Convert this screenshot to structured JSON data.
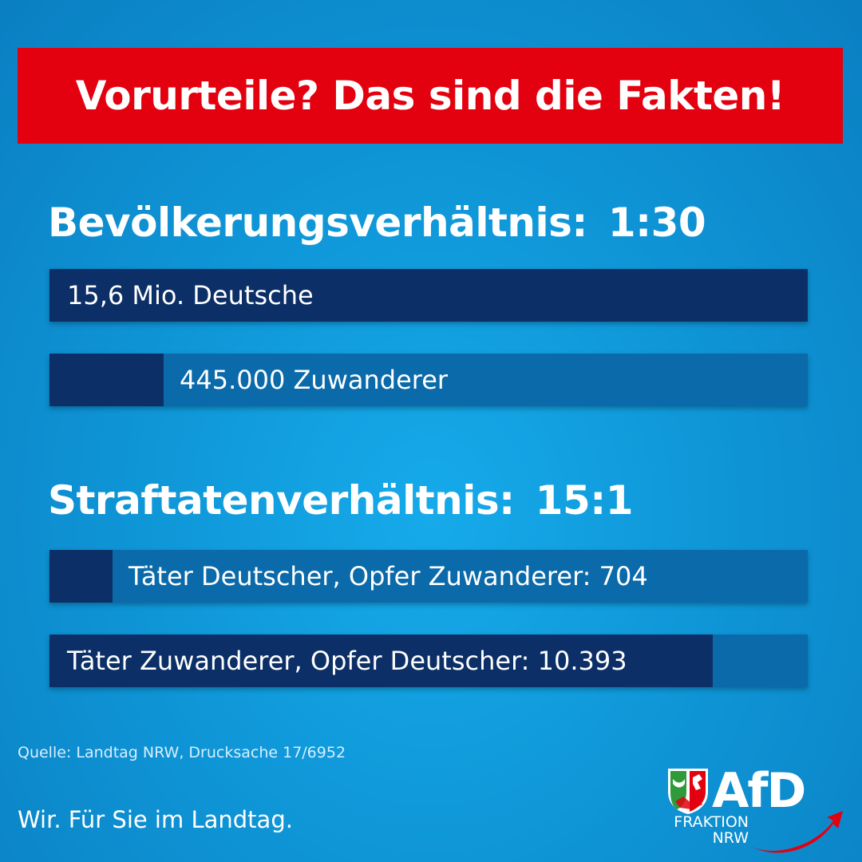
{
  "banner": {
    "title": "Vorurteile? Das sind die Fakten!"
  },
  "sections": [
    {
      "heading": "Bevölkerungsverhältnis:",
      "ratio": "1:30"
    },
    {
      "heading": "Straftatenverhältnis:",
      "ratio": "15:1"
    }
  ],
  "source": "Quelle: Landtag NRW, Drucksache 17/6952",
  "slogan": "Wir. Für Sie im Landtag.",
  "logo": {
    "name": "AfD",
    "line1": "FRAKTION",
    "line2": "NRW"
  },
  "colors": {
    "background": "#0f97d8",
    "banner": "#e3000f",
    "bar_fill": "#0b2f66",
    "bar_track": "#0b6aaa",
    "logo_arrow": "#e3000f"
  },
  "chart_data": [
    {
      "type": "bar",
      "title": "Bevölkerungsverhältnis: 1:30",
      "categories": [
        "15,6 Mio. Deutsche",
        "445.000 Zuwanderer"
      ],
      "values": [
        15600000,
        445000
      ],
      "fill_fraction": [
        1.0,
        0.15
      ],
      "orientation": "horizontal"
    },
    {
      "type": "bar",
      "title": "Straftatenverhältnis: 15:1",
      "categories": [
        "Täter Deutscher, Opfer Zuwanderer: 704",
        "Täter Zuwanderer, Opfer Deutscher: 10.393"
      ],
      "values": [
        704,
        10393
      ],
      "fill_fraction": [
        0.083,
        0.875
      ],
      "orientation": "horizontal"
    }
  ]
}
